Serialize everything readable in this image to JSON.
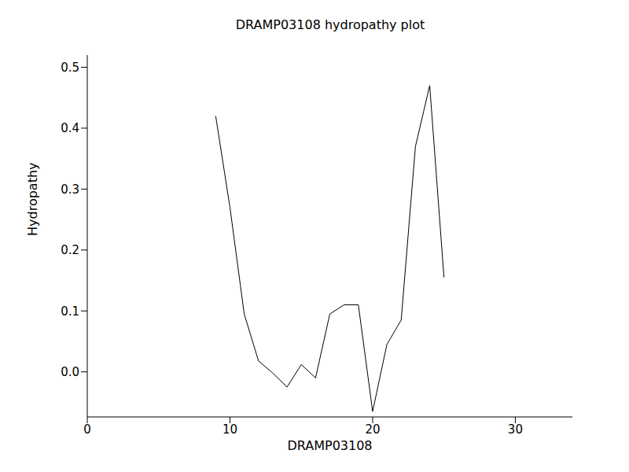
{
  "chart_data": {
    "type": "line",
    "title": "DRAMP03108 hydropathy plot",
    "x_label": "DRAMP03108",
    "y_label": "Hydropathy",
    "x": [
      9,
      10,
      11,
      12,
      13,
      14,
      15,
      16,
      17,
      18,
      19,
      20,
      21,
      22,
      23,
      24,
      25
    ],
    "values": [
      0.42,
      0.27,
      0.095,
      0.018,
      -0.002,
      -0.025,
      0.012,
      -0.01,
      0.095,
      0.11,
      0.11,
      -0.065,
      0.045,
      0.085,
      0.37,
      0.47,
      0.155
    ],
    "color": "#000000",
    "xlim": [
      0,
      34
    ],
    "ylim": [
      -0.074,
      0.52
    ],
    "xticks": [
      0,
      10,
      20,
      30
    ],
    "yticks": [
      {
        "value": 0,
        "label": "0.0"
      },
      0.1,
      0.2,
      0.3,
      0.4,
      0.5
    ],
    "grid": false
  }
}
